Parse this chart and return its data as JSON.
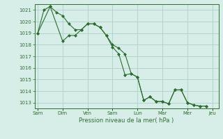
{
  "title": "",
  "xlabel": "Pression niveau de la mer( hPa )",
  "background_color": "#d6ede8",
  "grid_color": "#b0d4ce",
  "line_color": "#2d6e2d",
  "marker_color": "#2d6e2d",
  "ylim": [
    1012.5,
    1021.5
  ],
  "yticks": [
    1013,
    1014,
    1015,
    1016,
    1017,
    1018,
    1019,
    1020,
    1021
  ],
  "day_labels": [
    "Sam",
    "Dim",
    "Ven",
    "Sam",
    "Lun",
    "Mar",
    "Mer",
    "Jeu"
  ],
  "day_positions": [
    0,
    8,
    16,
    24,
    32,
    40,
    48,
    56
  ],
  "xlim": [
    -1,
    58
  ],
  "series1": [
    [
      0,
      1019.0
    ],
    [
      2,
      1021.0
    ],
    [
      4,
      1021.3
    ],
    [
      6,
      1020.8
    ],
    [
      8,
      1020.5
    ],
    [
      10,
      1019.8
    ],
    [
      12,
      1019.3
    ],
    [
      14,
      1019.3
    ],
    [
      16,
      1019.8
    ],
    [
      18,
      1019.8
    ],
    [
      20,
      1019.5
    ],
    [
      22,
      1018.8
    ],
    [
      24,
      1018.0
    ],
    [
      26,
      1017.7
    ],
    [
      28,
      1017.2
    ],
    [
      30,
      1015.5
    ],
    [
      32,
      1015.2
    ],
    [
      34,
      1013.2
    ],
    [
      36,
      1013.5
    ],
    [
      38,
      1013.1
    ],
    [
      40,
      1013.1
    ],
    [
      42,
      1012.9
    ],
    [
      44,
      1014.1
    ],
    [
      46,
      1014.1
    ],
    [
      48,
      1013.0
    ],
    [
      50,
      1012.8
    ],
    [
      52,
      1012.7
    ],
    [
      54,
      1012.7
    ]
  ],
  "series2": [
    [
      0,
      1019.0
    ],
    [
      4,
      1021.3
    ],
    [
      8,
      1018.3
    ],
    [
      10,
      1018.8
    ],
    [
      12,
      1018.8
    ],
    [
      14,
      1019.3
    ],
    [
      16,
      1019.8
    ],
    [
      18,
      1019.8
    ],
    [
      20,
      1019.5
    ],
    [
      22,
      1018.8
    ],
    [
      24,
      1017.8
    ],
    [
      26,
      1017.2
    ],
    [
      28,
      1015.4
    ],
    [
      30,
      1015.5
    ],
    [
      32,
      1015.2
    ],
    [
      34,
      1013.2
    ],
    [
      36,
      1013.5
    ],
    [
      38,
      1013.1
    ],
    [
      40,
      1013.1
    ],
    [
      42,
      1012.9
    ],
    [
      44,
      1014.1
    ],
    [
      46,
      1014.1
    ],
    [
      48,
      1013.0
    ],
    [
      50,
      1012.8
    ],
    [
      52,
      1012.7
    ],
    [
      54,
      1012.7
    ]
  ]
}
